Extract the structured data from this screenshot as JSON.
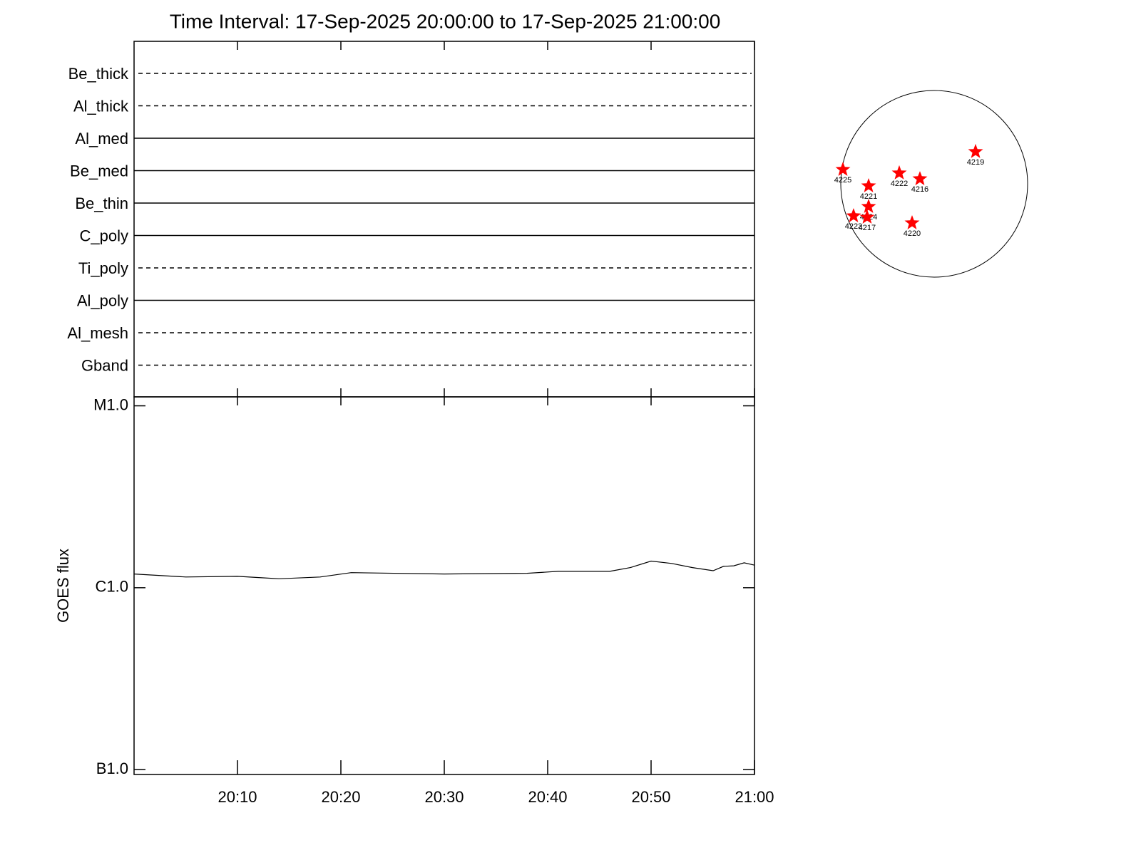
{
  "chart_data": [
    {
      "type": "timeline",
      "title": "Time Interval: 17-Sep-2025 20:00:00 to 17-Sep-2025 21:00:00",
      "series": [
        {
          "name": "Be_thick",
          "style": "dashed"
        },
        {
          "name": "Al_thick",
          "style": "dashed"
        },
        {
          "name": "Al_med",
          "style": "solid"
        },
        {
          "name": "Be_med",
          "style": "solid"
        },
        {
          "name": "Be_thin",
          "style": "solid"
        },
        {
          "name": "C_poly",
          "style": "solid"
        },
        {
          "name": "Ti_poly",
          "style": "dashed"
        },
        {
          "name": "Al_poly",
          "style": "solid"
        },
        {
          "name": "Al_mesh",
          "style": "dashed"
        },
        {
          "name": "Gband",
          "style": "dashed"
        }
      ],
      "xlim": [
        "20:00",
        "21:00"
      ],
      "xticks": [
        "20:10",
        "20:20",
        "20:30",
        "20:40",
        "20:50",
        "21:00"
      ]
    },
    {
      "type": "line",
      "ylabel": "GOES flux",
      "log_scale": true,
      "color": "#000000",
      "xlim": [
        "20:00",
        "21:00"
      ],
      "xticks": [
        "20:10",
        "20:20",
        "20:30",
        "20:40",
        "20:50",
        "21:00"
      ],
      "ylim": [
        9.4e-08,
        1.12e-05
      ],
      "yticks": [
        {
          "value": 1e-07,
          "label": "B1.0"
        },
        {
          "value": 1e-06,
          "label": "C1.0"
        },
        {
          "value": 1e-05,
          "label": "M1.0"
        }
      ],
      "x": [
        "20:00",
        "20:05",
        "20:10",
        "20:14",
        "20:18",
        "20:21",
        "20:30",
        "20:38",
        "20:41",
        "20:46",
        "20:48",
        "20:50",
        "20:52",
        "20:54",
        "20:56",
        "20:57",
        "20:58",
        "20:59",
        "21:00"
      ],
      "values": [
        1.19e-06,
        1.145e-06,
        1.155e-06,
        1.12e-06,
        1.145e-06,
        1.21e-06,
        1.19e-06,
        1.2e-06,
        1.23e-06,
        1.23e-06,
        1.29e-06,
        1.4e-06,
        1.36e-06,
        1.29e-06,
        1.24e-06,
        1.31e-06,
        1.32e-06,
        1.37e-06,
        1.33e-06
      ]
    },
    {
      "type": "scatter",
      "color": "#ff0000",
      "labels": [
        "4225",
        "4221",
        "4222",
        "4216",
        "4219",
        "4224",
        "4223",
        "4217",
        "4220"
      ],
      "x": [
        -0.977,
        -0.702,
        -0.374,
        -0.153,
        0.443,
        -0.702,
        -0.863,
        -0.718,
        -0.237
      ],
      "values": [
        0.153,
        -0.023,
        0.115,
        0.053,
        0.344,
        -0.244,
        -0.344,
        -0.359,
        -0.42
      ]
    }
  ]
}
